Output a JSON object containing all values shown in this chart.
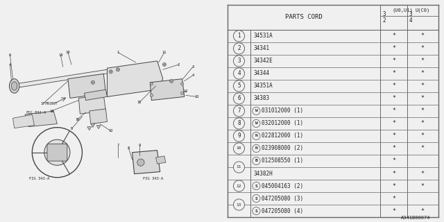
{
  "fig_code": "A341B00074",
  "bg_color": "#f0f0f0",
  "line_color": "#444444",
  "text_color": "#222222",
  "table_line_color": "#666666",
  "table": {
    "col1_top": "3\n2",
    "col1_sub": "(U0,U1)",
    "col2_top": "3\n4",
    "col2_sub": "U(C0)",
    "display_rows": [
      {
        "num": "1",
        "num_span": 1,
        "prefix": "",
        "part": "34531A",
        "qty": "",
        "c1": "*",
        "c2": "*"
      },
      {
        "num": "2",
        "num_span": 1,
        "prefix": "",
        "part": "34341",
        "qty": "",
        "c1": "*",
        "c2": "*"
      },
      {
        "num": "3",
        "num_span": 1,
        "prefix": "",
        "part": "34342E",
        "qty": "",
        "c1": "*",
        "c2": "*"
      },
      {
        "num": "4",
        "num_span": 1,
        "prefix": "",
        "part": "34344",
        "qty": "",
        "c1": "*",
        "c2": "*"
      },
      {
        "num": "5",
        "num_span": 1,
        "prefix": "",
        "part": "34351A",
        "qty": "",
        "c1": "*",
        "c2": "*"
      },
      {
        "num": "6",
        "num_span": 1,
        "prefix": "",
        "part": "34383",
        "qty": "",
        "c1": "*",
        "c2": "*"
      },
      {
        "num": "7",
        "num_span": 1,
        "prefix": "W",
        "part": "031012000",
        "qty": "(1)",
        "c1": "*",
        "c2": "*"
      },
      {
        "num": "8",
        "num_span": 1,
        "prefix": "W",
        "part": "032012000",
        "qty": "(1)",
        "c1": "*",
        "c2": "*"
      },
      {
        "num": "9",
        "num_span": 1,
        "prefix": "N",
        "part": "022812000",
        "qty": "(1)",
        "c1": "*",
        "c2": "*"
      },
      {
        "num": "10",
        "num_span": 1,
        "prefix": "N",
        "part": "023908000",
        "qty": "(2)",
        "c1": "*",
        "c2": "*"
      },
      {
        "num": "11",
        "num_span": 2,
        "prefix": "B",
        "part": "012508550",
        "qty": "(1)",
        "c1": "*",
        "c2": ""
      },
      {
        "num": "",
        "num_span": 0,
        "prefix": "",
        "part": "34382H",
        "qty": "",
        "c1": "*",
        "c2": "*"
      },
      {
        "num": "12",
        "num_span": 1,
        "prefix": "S",
        "part": "045004163",
        "qty": "(2)",
        "c1": "*",
        "c2": "*"
      },
      {
        "num": "13",
        "num_span": 2,
        "prefix": "S",
        "part": "047205080",
        "qty": "(3)",
        "c1": "*",
        "c2": ""
      },
      {
        "num": "",
        "num_span": 0,
        "prefix": "S",
        "part": "047205080",
        "qty": "(4)",
        "c1": "*",
        "c2": "*"
      }
    ]
  }
}
